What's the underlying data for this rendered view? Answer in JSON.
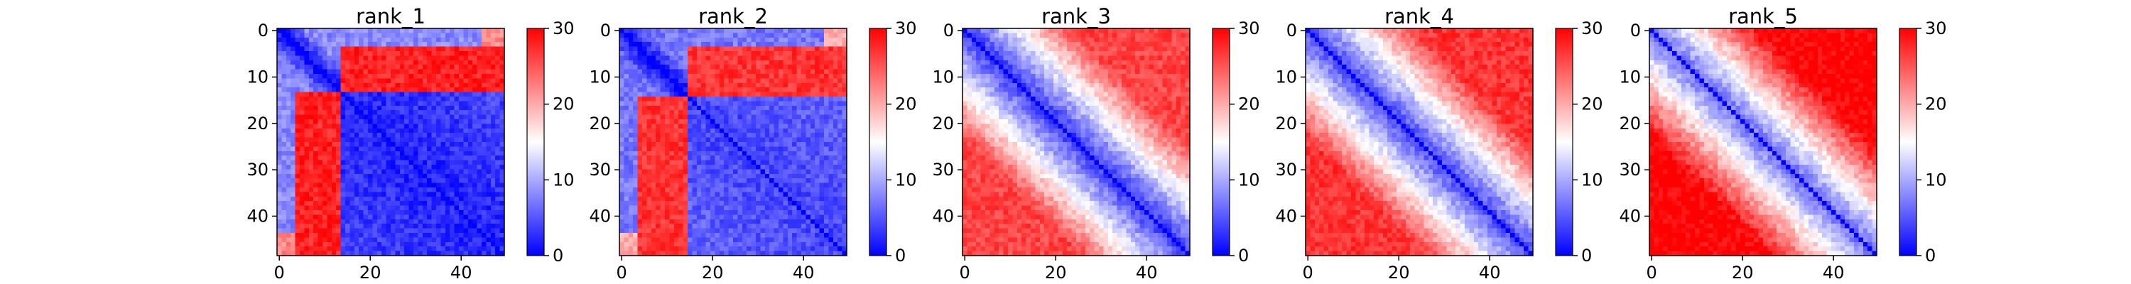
{
  "figure": {
    "panels": [
      {
        "title": "rank_1"
      },
      {
        "title": "rank_2"
      },
      {
        "title": "rank_3"
      },
      {
        "title": "rank_4"
      },
      {
        "title": "rank_5"
      }
    ]
  },
  "chart_data": [
    {
      "type": "heatmap",
      "title": "rank_1",
      "colormap": "bwr",
      "matrix_size": 50,
      "x_ticks": [
        "0",
        "20",
        "40"
      ],
      "y_ticks": [
        "0",
        "10",
        "20",
        "30",
        "40"
      ],
      "xlim": [
        0,
        49
      ],
      "ylim": [
        49,
        0
      ],
      "colorbar": {
        "range": [
          0,
          30
        ],
        "ticks": [
          "0",
          "10",
          "20",
          "30"
        ]
      },
      "pattern": {
        "block_end": 13,
        "top_right_block_value": 28,
        "within_block_value": 8,
        "low_region_value": 2,
        "diagonal_value": 0,
        "bottom_left_corner_value": 22
      }
    },
    {
      "type": "heatmap",
      "title": "rank_2",
      "colormap": "bwr",
      "matrix_size": 50,
      "x_ticks": [
        "0",
        "20",
        "40"
      ],
      "y_ticks": [
        "0",
        "10",
        "20",
        "30",
        "40"
      ],
      "xlim": [
        0,
        49
      ],
      "ylim": [
        49,
        0
      ],
      "colorbar": {
        "range": [
          0,
          30
        ],
        "ticks": [
          "0",
          "10",
          "20",
          "30"
        ]
      },
      "pattern": {
        "block_end": 14,
        "top_right_block_value": 27,
        "within_block_value": 7,
        "low_region_value": 4,
        "diagonal_value": 0,
        "bottom_left_corner_value": 20
      }
    },
    {
      "type": "heatmap",
      "title": "rank_3",
      "colormap": "bwr",
      "matrix_size": 50,
      "x_ticks": [
        "0",
        "20",
        "40"
      ],
      "y_ticks": [
        "0",
        "10",
        "20",
        "30",
        "40"
      ],
      "xlim": [
        0,
        49
      ],
      "ylim": [
        49,
        0
      ],
      "colorbar": {
        "range": [
          0,
          30
        ],
        "ticks": [
          "0",
          "10",
          "20",
          "30"
        ]
      },
      "pattern": {
        "near_diagonal_value": 3,
        "far_off_diagonal_value": 26,
        "diagonal_value": 0
      }
    },
    {
      "type": "heatmap",
      "title": "rank_4",
      "colormap": "bwr",
      "matrix_size": 50,
      "x_ticks": [
        "0",
        "20",
        "40"
      ],
      "y_ticks": [
        "0",
        "10",
        "20",
        "30",
        "40"
      ],
      "xlim": [
        0,
        49
      ],
      "ylim": [
        49,
        0
      ],
      "colorbar": {
        "range": [
          0,
          30
        ],
        "ticks": [
          "0",
          "10",
          "20",
          "30"
        ]
      },
      "pattern": {
        "near_diagonal_value": 4,
        "far_off_diagonal_value": 27,
        "diagonal_value": 0
      }
    },
    {
      "type": "heatmap",
      "title": "rank_5",
      "colormap": "bwr",
      "matrix_size": 50,
      "x_ticks": [
        "0",
        "20",
        "40"
      ],
      "y_ticks": [
        "0",
        "10",
        "20",
        "30",
        "40"
      ],
      "xlim": [
        0,
        49
      ],
      "ylim": [
        49,
        0
      ],
      "colorbar": {
        "range": [
          0,
          30
        ],
        "ticks": [
          "0",
          "10",
          "20",
          "30"
        ]
      },
      "pattern": {
        "near_diagonal_value": 6,
        "far_off_diagonal_value": 30,
        "diagonal_value": 0
      }
    }
  ]
}
